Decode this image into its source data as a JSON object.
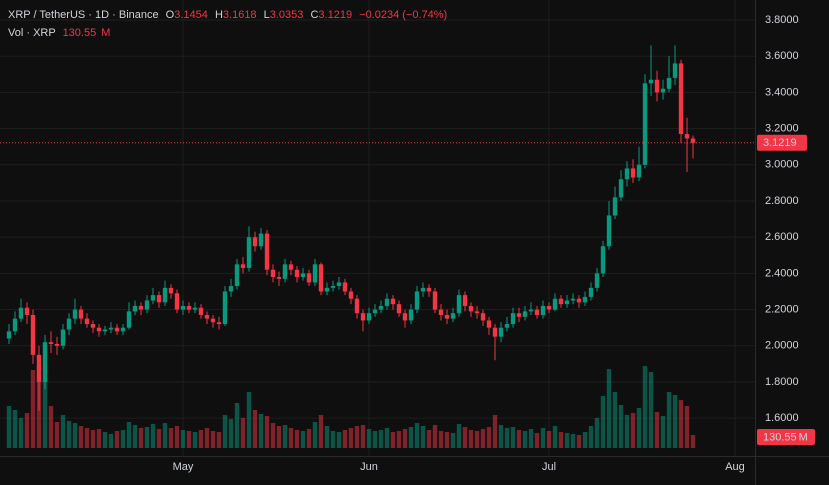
{
  "chart_data": {
    "type": "candlestick",
    "symbol": "XRP / TetherUS · 1D · Binance",
    "ohlc_labels": [
      "O",
      "H",
      "L",
      "C"
    ],
    "change": "−0.0234 (−0.74%)",
    "volume_title": "Vol · XRP",
    "volume_unit": "M",
    "up_color": "#089981",
    "down_color": "#f23645",
    "grid": true,
    "xlim": [
      -1.5,
      124.33
    ],
    "xticks": [
      {
        "value": 29,
        "label": "May"
      },
      {
        "value": 60,
        "label": "Jun"
      },
      {
        "value": 90,
        "label": "Jul"
      },
      {
        "value": 121,
        "label": "Aug"
      }
    ],
    "ylim": [
      1.391,
      3.9105
    ],
    "yticks": [
      {
        "value": 3.8,
        "label": "3.8000"
      },
      {
        "value": 3.6,
        "label": "3.6000"
      },
      {
        "value": 3.4,
        "label": "3.4000"
      },
      {
        "value": 3.2,
        "label": "3.2000"
      },
      {
        "value": 3.0,
        "label": "3.0000"
      },
      {
        "value": 2.8,
        "label": "2.8000"
      },
      {
        "value": 2.6,
        "label": "2.6000"
      },
      {
        "value": 2.4,
        "label": "2.4000"
      },
      {
        "value": 2.2,
        "label": "2.2000"
      },
      {
        "value": 2.0,
        "label": "2.0000"
      },
      {
        "value": 1.8,
        "label": "1.8000"
      },
      {
        "value": 1.6,
        "label": "1.6000"
      }
    ],
    "open": [
      2.04,
      2.08,
      2.15,
      2.21,
      2.17,
      1.95,
      1.8,
      2.02,
      2.01,
      2.0,
      2.09,
      2.15,
      2.2,
      2.15,
      2.12,
      2.1,
      2.08,
      2.09,
      2.1,
      2.08,
      2.1,
      2.19,
      2.22,
      2.2,
      2.25,
      2.28,
      2.24,
      2.32,
      2.29,
      2.2,
      2.22,
      2.2,
      2.21,
      2.17,
      2.15,
      2.13,
      2.12,
      2.3,
      2.33,
      2.45,
      2.43,
      2.6,
      2.55,
      2.62,
      2.42,
      2.38,
      2.37,
      2.45,
      2.42,
      2.38,
      2.4,
      2.35,
      2.45,
      2.3,
      2.32,
      2.33,
      2.35,
      2.3,
      2.26,
      2.18,
      2.14,
      2.18,
      2.2,
      2.22,
      2.26,
      2.23,
      2.18,
      2.14,
      2.2,
      2.3,
      2.32,
      2.3,
      2.2,
      2.17,
      2.15,
      2.18,
      2.28,
      2.22,
      2.19,
      2.18,
      2.14,
      2.1,
      2.05,
      2.1,
      2.12,
      2.18,
      2.16,
      2.19,
      2.2,
      2.17,
      2.22,
      2.2,
      2.26,
      2.23,
      2.25,
      2.26,
      2.24,
      2.27,
      2.32,
      2.4,
      2.55,
      2.72,
      2.82,
      2.92,
      2.98,
      2.93,
      3.0,
      3.45,
      3.47,
      3.4,
      3.42,
      3.48,
      3.56,
      3.17,
      3.1454
    ],
    "high": [
      2.12,
      2.19,
      2.26,
      2.24,
      2.2,
      2.0,
      2.06,
      2.08,
      2.05,
      2.12,
      2.18,
      2.26,
      2.22,
      2.18,
      2.14,
      2.12,
      2.11,
      2.13,
      2.12,
      2.12,
      2.24,
      2.25,
      2.24,
      2.28,
      2.32,
      2.3,
      2.36,
      2.34,
      2.31,
      2.25,
      2.24,
      2.24,
      2.23,
      2.19,
      2.17,
      2.16,
      2.33,
      2.37,
      2.48,
      2.49,
      2.66,
      2.63,
      2.65,
      2.64,
      2.45,
      2.41,
      2.48,
      2.47,
      2.44,
      2.43,
      2.42,
      2.48,
      2.46,
      2.35,
      2.36,
      2.38,
      2.37,
      2.32,
      2.28,
      2.2,
      2.21,
      2.23,
      2.25,
      2.29,
      2.28,
      2.25,
      2.2,
      2.23,
      2.33,
      2.35,
      2.34,
      2.32,
      2.23,
      2.2,
      2.21,
      2.31,
      2.3,
      2.24,
      2.22,
      2.2,
      2.16,
      2.12,
      2.13,
      2.16,
      2.21,
      2.21,
      2.22,
      2.24,
      2.22,
      2.25,
      2.24,
      2.29,
      2.28,
      2.28,
      2.29,
      2.28,
      2.3,
      2.35,
      2.43,
      2.58,
      2.8,
      2.88,
      2.97,
      3.02,
      3.03,
      3.1,
      3.5,
      3.66,
      3.52,
      3.47,
      3.6,
      3.66,
      3.58,
      3.26,
      3.1618
    ],
    "low": [
      2.01,
      2.06,
      2.13,
      2.12,
      1.9,
      1.64,
      1.76,
      1.96,
      1.95,
      1.98,
      2.06,
      2.12,
      2.12,
      2.1,
      2.07,
      2.05,
      2.06,
      2.07,
      2.06,
      2.06,
      2.09,
      2.17,
      2.17,
      2.18,
      2.23,
      2.21,
      2.22,
      2.26,
      2.18,
      2.17,
      2.18,
      2.18,
      2.15,
      2.12,
      2.1,
      2.09,
      2.11,
      2.27,
      2.31,
      2.4,
      2.41,
      2.52,
      2.53,
      2.39,
      2.35,
      2.33,
      2.35,
      2.39,
      2.35,
      2.36,
      2.33,
      2.33,
      2.28,
      2.28,
      2.3,
      2.31,
      2.28,
      2.23,
      2.15,
      2.08,
      2.12,
      2.16,
      2.18,
      2.2,
      2.2,
      2.16,
      2.1,
      2.12,
      2.18,
      2.27,
      2.27,
      2.18,
      2.14,
      2.12,
      2.13,
      2.16,
      2.19,
      2.16,
      2.15,
      2.11,
      2.06,
      1.92,
      2.02,
      2.08,
      2.1,
      2.13,
      2.14,
      2.17,
      2.15,
      2.15,
      2.18,
      2.19,
      2.21,
      2.21,
      2.23,
      2.21,
      2.22,
      2.25,
      2.3,
      2.38,
      2.53,
      2.7,
      2.8,
      2.88,
      2.9,
      2.91,
      2.98,
      3.38,
      3.35,
      3.36,
      3.4,
      3.44,
      3.12,
      2.96,
      3.0353
    ],
    "close": [
      2.08,
      2.15,
      2.21,
      2.17,
      1.95,
      1.8,
      2.02,
      2.01,
      2.0,
      2.09,
      2.15,
      2.2,
      2.15,
      2.12,
      2.1,
      2.08,
      2.09,
      2.1,
      2.08,
      2.1,
      2.19,
      2.22,
      2.2,
      2.25,
      2.28,
      2.24,
      2.32,
      2.29,
      2.2,
      2.22,
      2.2,
      2.21,
      2.17,
      2.15,
      2.13,
      2.12,
      2.3,
      2.33,
      2.45,
      2.43,
      2.6,
      2.55,
      2.62,
      2.42,
      2.38,
      2.37,
      2.45,
      2.42,
      2.38,
      2.4,
      2.35,
      2.45,
      2.3,
      2.32,
      2.33,
      2.35,
      2.3,
      2.26,
      2.18,
      2.14,
      2.18,
      2.2,
      2.22,
      2.26,
      2.23,
      2.18,
      2.14,
      2.2,
      2.3,
      2.32,
      2.3,
      2.2,
      2.17,
      2.15,
      2.18,
      2.28,
      2.22,
      2.19,
      2.18,
      2.14,
      2.1,
      2.05,
      2.1,
      2.12,
      2.18,
      2.16,
      2.19,
      2.2,
      2.17,
      2.22,
      2.2,
      2.26,
      2.23,
      2.25,
      2.26,
      2.24,
      2.27,
      2.32,
      2.4,
      2.55,
      2.72,
      2.82,
      2.92,
      2.98,
      2.93,
      3.0,
      3.45,
      3.47,
      3.4,
      3.42,
      3.48,
      3.56,
      3.17,
      3.1454,
      3.1219
    ],
    "volume": [
      420,
      380,
      300,
      350,
      780,
      820,
      690,
      420,
      260,
      330,
      270,
      250,
      220,
      200,
      180,
      190,
      160,
      140,
      170,
      180,
      260,
      230,
      200,
      210,
      240,
      190,
      250,
      200,
      220,
      180,
      170,
      160,
      180,
      200,
      170,
      160,
      330,
      290,
      450,
      300,
      560,
      380,
      340,
      320,
      250,
      220,
      230,
      200,
      180,
      170,
      190,
      260,
      330,
      220,
      170,
      160,
      180,
      200,
      220,
      230,
      190,
      170,
      180,
      200,
      160,
      170,
      190,
      210,
      250,
      220,
      180,
      230,
      170,
      160,
      150,
      240,
      210,
      180,
      170,
      190,
      210,
      330,
      230,
      200,
      210,
      180,
      170,
      190,
      150,
      200,
      170,
      220,
      160,
      150,
      140,
      130,
      160,
      220,
      300,
      520,
      790,
      560,
      430,
      330,
      350,
      400,
      820,
      760,
      360,
      320,
      560,
      530,
      480,
      420,
      130.55
    ]
  }
}
